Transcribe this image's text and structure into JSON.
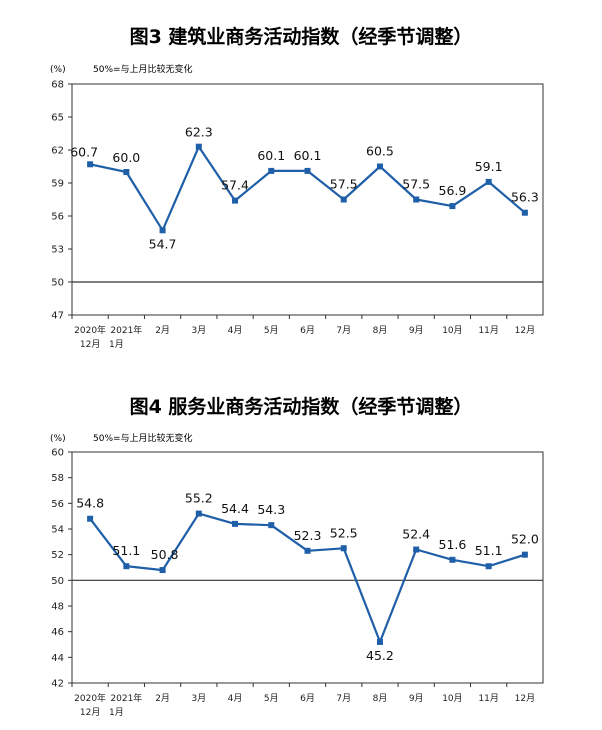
{
  "chart_data": [
    {
      "type": "line",
      "title": "图3  建筑业商务活动指数（经季节调整）",
      "unit": "(%)",
      "note": "50%=与上月比较无变化",
      "categories": [
        "2020年|12月",
        "2021年|1月",
        "2月",
        "3月",
        "4月",
        "5月",
        "6月",
        "7月",
        "8月",
        "9月",
        "10月",
        "11月",
        "12月"
      ],
      "series": [
        {
          "values": [
            60.7,
            60.0,
            54.7,
            62.3,
            57.4,
            60.1,
            60.1,
            57.5,
            60.5,
            57.5,
            56.9,
            59.1,
            56.3
          ]
        }
      ],
      "labels": [
        "60.7",
        "60.0",
        "54.7",
        "62.3",
        "57.4",
        "60.1",
        "60.1",
        "57.5",
        "60.5",
        "57.5",
        "56.9",
        "59.1",
        "56.3"
      ],
      "yticks": [
        "47",
        "50",
        "53",
        "56",
        "59",
        "62",
        "65",
        "68"
      ],
      "ylim": [
        47,
        68
      ],
      "reference_line": 50,
      "grid": false,
      "color": "#1f5fa8"
    },
    {
      "type": "line",
      "title": "图4  服务业商务活动指数（经季节调整）",
      "unit": "(%)",
      "note": "50%=与上月比较无变化",
      "categories": [
        "2020年|12月",
        "2021年|1月",
        "2月",
        "3月",
        "4月",
        "5月",
        "6月",
        "7月",
        "8月",
        "9月",
        "10月",
        "11月",
        "12月"
      ],
      "series": [
        {
          "values": [
            54.8,
            51.1,
            50.8,
            55.2,
            54.4,
            54.3,
            52.3,
            52.5,
            45.2,
            52.4,
            51.6,
            51.1,
            52.0
          ]
        }
      ],
      "labels": [
        "54.8",
        "51.1",
        "50.8",
        "55.2",
        "54.4",
        "54.3",
        "52.3",
        "52.5",
        "45.2",
        "52.4",
        "51.6",
        "51.1",
        "52.0"
      ],
      "yticks": [
        "42",
        "44",
        "46",
        "48",
        "50",
        "52",
        "54",
        "56",
        "58",
        "60"
      ],
      "ylim": [
        42,
        60
      ],
      "reference_line": 50,
      "grid": false,
      "color": "#1f5fa8"
    }
  ]
}
